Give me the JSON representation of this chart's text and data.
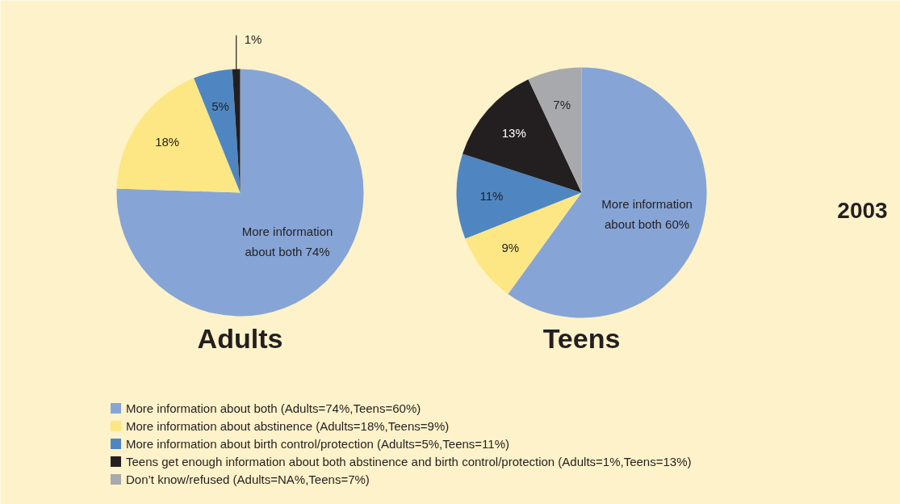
{
  "chart_data": {
    "type": "pie",
    "legend": "bottom",
    "categories": [
      "More information about both (Adults=74%,Teens=60%)",
      "More information about abstinence (Adults=18%,Teens=9%)",
      "More information about birth control/protection (Adults=5%,Teens=11%)",
      "Teens get enough information about both abstinence and birth control/protection (Adults=1%,Teens=13%)",
      "Don’t know/refused (Adults=NA%,Teens=7%)"
    ],
    "colors": [
      "#86a5d6",
      "#fce784",
      "#4f86c2",
      "#231f20",
      "#a8a9ac"
    ],
    "series": [
      {
        "name": "Adults",
        "values": [
          74,
          18,
          5,
          1,
          null
        ],
        "value_labels": [
          "More information\nabout both 74%",
          "18%",
          "5%",
          "1%",
          null
        ]
      },
      {
        "name": "Teens",
        "values": [
          60,
          9,
          11,
          13,
          7
        ],
        "value_labels": [
          "More information\nabout both 60%",
          "9%",
          "11%",
          "13%",
          "7%"
        ]
      }
    ],
    "annotations": [
      "2003"
    ]
  }
}
